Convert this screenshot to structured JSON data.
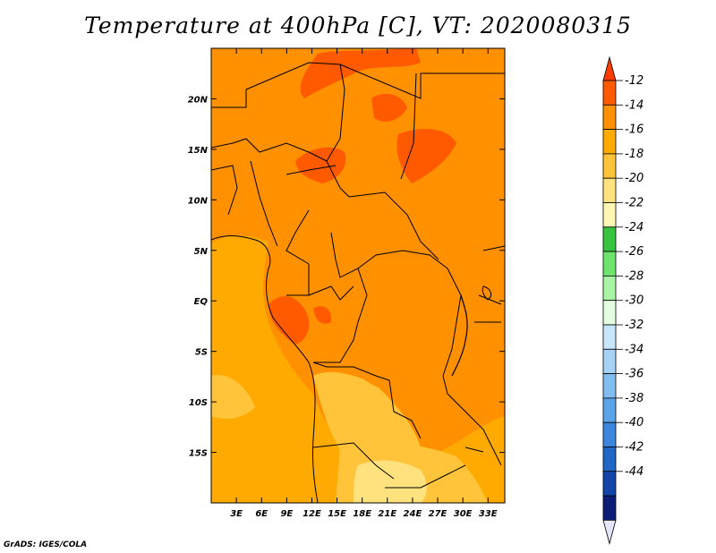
{
  "title": "Temperature at 400hPa [C], VT: 2020080315",
  "credit": "GrADS: IGES/COLA",
  "map": {
    "lon_range": [
      0,
      35
    ],
    "lat_range": [
      -20,
      25
    ],
    "lat_ticks": [
      {
        "value": 20,
        "label": "20N"
      },
      {
        "value": 15,
        "label": "15N"
      },
      {
        "value": 10,
        "label": "10N"
      },
      {
        "value": 5,
        "label": "5N"
      },
      {
        "value": 0,
        "label": "EQ"
      },
      {
        "value": -5,
        "label": "5S"
      },
      {
        "value": -10,
        "label": "10S"
      },
      {
        "value": -15,
        "label": "15S"
      }
    ],
    "lon_ticks": [
      {
        "value": 3,
        "label": "3E"
      },
      {
        "value": 6,
        "label": "6E"
      },
      {
        "value": 9,
        "label": "9E"
      },
      {
        "value": 12,
        "label": "12E"
      },
      {
        "value": 15,
        "label": "15E"
      },
      {
        "value": 18,
        "label": "18E"
      },
      {
        "value": 21,
        "label": "21E"
      },
      {
        "value": 24,
        "label": "24E"
      },
      {
        "value": 27,
        "label": "27E"
      },
      {
        "value": 30,
        "label": "30E"
      },
      {
        "value": 33,
        "label": "33E"
      }
    ]
  },
  "colorbar": {
    "labels": [
      "-12",
      "-14",
      "-16",
      "-18",
      "-20",
      "-22",
      "-24",
      "-26",
      "-28",
      "-30",
      "-32",
      "-34",
      "-36",
      "-38",
      "-40",
      "-42",
      "-44"
    ],
    "colors": [
      "#ff5a00",
      "#ff9000",
      "#ffaa00",
      "#ffc43a",
      "#ffe27d",
      "#fff8b4",
      "#37c43f",
      "#6ee46e",
      "#aaf5a5",
      "#e2fde0",
      "#c8e6fb",
      "#a6d2f5",
      "#82bdf0",
      "#5aa3e8",
      "#3c87dd",
      "#2066c7",
      "#1245a8",
      "#0a1e78"
    ],
    "arrow_top_color": "#ff3c00",
    "arrow_bottom_color": "#e6e6fa"
  },
  "legend_colors": {
    "t_14_12": "#ff9000",
    "t_12_above": "#ff5a00",
    "t_16_14": "#ffaa00",
    "t_18_16": "#ffc43a",
    "t_20_18": "#ffe27d",
    "border": "#000000"
  }
}
